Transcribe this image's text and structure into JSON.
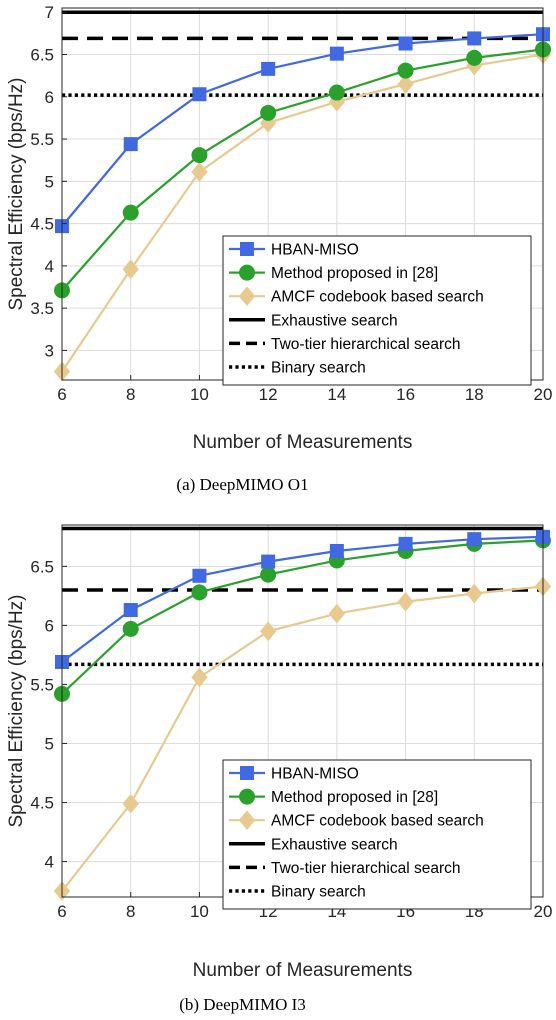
{
  "chart_data": [
    {
      "type": "line",
      "caption": "(a)  DeepMIMO O1",
      "xlabel": "Number of Measurements",
      "ylabel": "Spectral Efficiency (bps/Hz)",
      "xlim": [
        6,
        20
      ],
      "ylim": [
        2.65,
        7.05
      ],
      "xticks": [
        6,
        8,
        10,
        12,
        14,
        16,
        18,
        20
      ],
      "yticks": [
        3,
        3.5,
        4,
        4.5,
        5,
        5.5,
        6,
        6.5,
        7
      ],
      "ytick_labels": [
        "3",
        "3.5",
        "4",
        "4.5",
        "5",
        "5.5",
        "6",
        "6.5",
        "7"
      ],
      "grid": true,
      "legend_position": "bottom-right",
      "x": [
        6,
        8,
        10,
        12,
        14,
        16,
        18,
        20
      ],
      "series": [
        {
          "name": "HBAN-MISO",
          "kind": "markers",
          "marker": "square",
          "color": "#4169e1",
          "values": [
            4.47,
            5.44,
            6.03,
            6.33,
            6.51,
            6.63,
            6.69,
            6.74
          ]
        },
        {
          "name": "Method proposed in [28]",
          "kind": "markers",
          "marker": "circle",
          "color": "#2ca02c",
          "values": [
            3.71,
            4.63,
            5.31,
            5.81,
            6.05,
            6.31,
            6.46,
            6.56
          ]
        },
        {
          "name": "AMCF codebook based search",
          "kind": "markers",
          "marker": "diamond",
          "color": "#e8c98f",
          "values": [
            2.75,
            3.96,
            5.11,
            5.69,
            5.94,
            6.15,
            6.37,
            6.5
          ]
        },
        {
          "name": "Exhaustive search",
          "kind": "constant",
          "dash": "solid",
          "color": "#000000",
          "value": 7.0
        },
        {
          "name": "Two-tier hierarchical search",
          "kind": "constant",
          "dash": "dashed",
          "color": "#000000",
          "value": 6.69
        },
        {
          "name": "Binary search",
          "kind": "constant",
          "dash": "dotted",
          "color": "#000000",
          "value": 6.02
        }
      ]
    },
    {
      "type": "line",
      "caption": "(b)  DeepMIMO I3",
      "xlabel": "Number of Measurements",
      "ylabel": "Spectral Efficiency (bps/Hz)",
      "xlim": [
        6,
        20
      ],
      "ylim": [
        3.7,
        6.85
      ],
      "xticks": [
        6,
        8,
        10,
        12,
        14,
        16,
        18,
        20
      ],
      "yticks": [
        4,
        4.5,
        5,
        5.5,
        6,
        6.5
      ],
      "ytick_labels": [
        "4",
        "4.5",
        "5",
        "5.5",
        "6",
        "6.5"
      ],
      "grid": true,
      "legend_position": "bottom-right",
      "x": [
        6,
        8,
        10,
        12,
        14,
        16,
        18,
        20
      ],
      "series": [
        {
          "name": "HBAN-MISO",
          "kind": "markers",
          "marker": "square",
          "color": "#4169e1",
          "values": [
            5.69,
            6.13,
            6.42,
            6.54,
            6.63,
            6.69,
            6.73,
            6.75
          ]
        },
        {
          "name": "Method proposed in [28]",
          "kind": "markers",
          "marker": "circle",
          "color": "#2ca02c",
          "values": [
            5.42,
            5.97,
            6.28,
            6.43,
            6.55,
            6.63,
            6.69,
            6.72
          ]
        },
        {
          "name": "AMCF codebook based search",
          "kind": "markers",
          "marker": "diamond",
          "color": "#e8c98f",
          "values": [
            3.75,
            4.49,
            5.56,
            5.95,
            6.1,
            6.2,
            6.27,
            6.33
          ]
        },
        {
          "name": "Exhaustive search",
          "kind": "constant",
          "dash": "solid",
          "color": "#000000",
          "value": 6.82
        },
        {
          "name": "Two-tier hierarchical search",
          "kind": "constant",
          "dash": "dashed",
          "color": "#000000",
          "value": 6.3
        },
        {
          "name": "Binary search",
          "kind": "constant",
          "dash": "dotted",
          "color": "#000000",
          "value": 5.67
        }
      ]
    }
  ]
}
